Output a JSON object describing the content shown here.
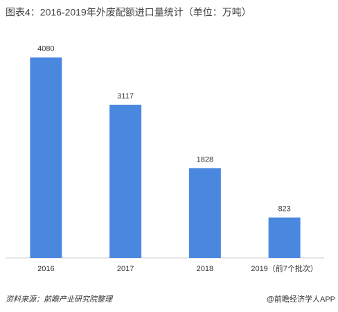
{
  "chart_data": {
    "type": "bar",
    "title": "图表4：2016-2019年外废配额进口量统计（单位：万吨）",
    "categories": [
      "2016",
      "2017",
      "2018",
      "2019（前7个批次）"
    ],
    "values": [
      4080,
      3117,
      1828,
      823
    ],
    "color": "#4a88e0",
    "ylim": [
      0,
      4500
    ]
  },
  "footer": {
    "source": "资料来源：前瞻产业研究院整理",
    "brand": "@前瞻经济学人APP"
  }
}
